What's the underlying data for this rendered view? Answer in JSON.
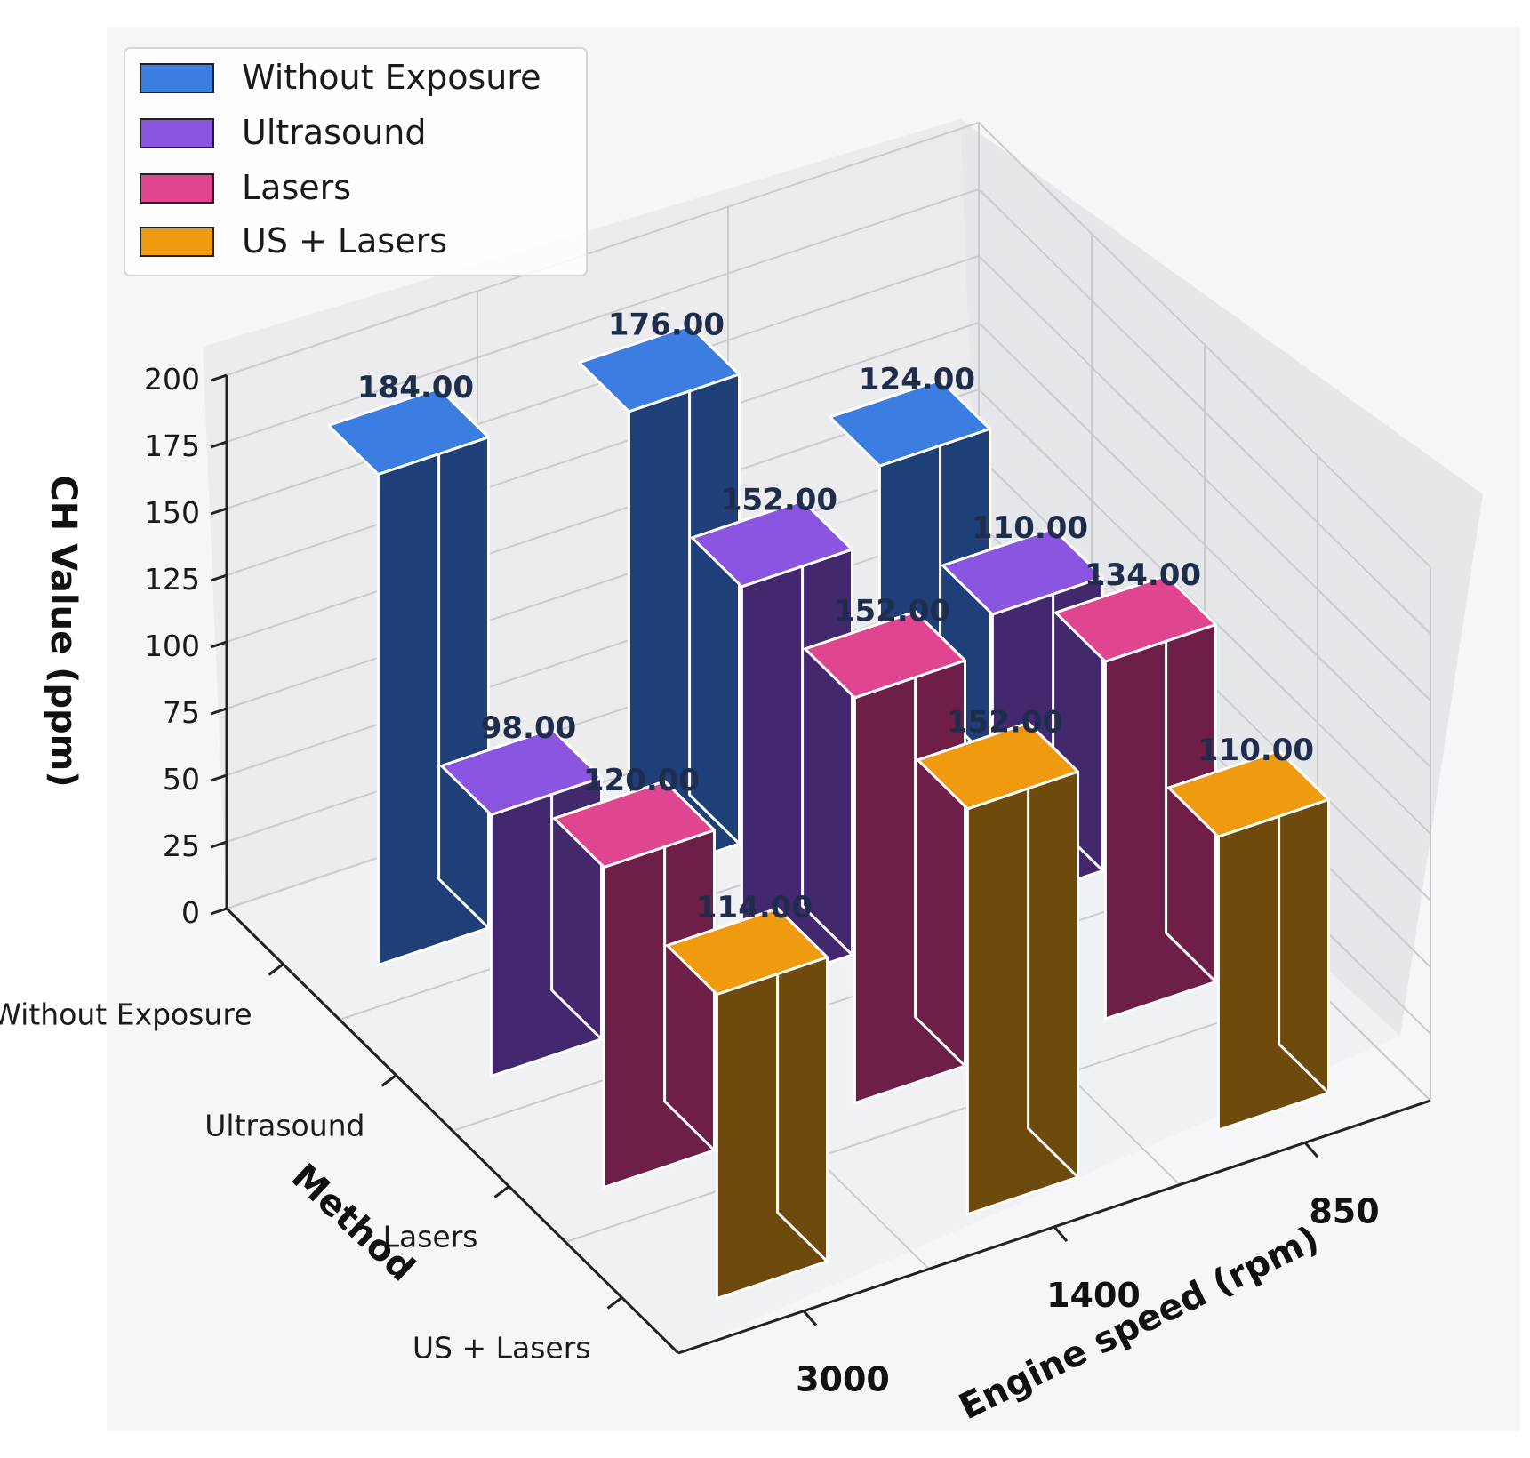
{
  "chart_data": {
    "type": "bar",
    "subtype": "3d-bar",
    "title": "",
    "zlabel": "CH Value (ppm)",
    "ylabel": "Method",
    "xlabel": "Engine speed (rpm)",
    "zlim": [
      0,
      200
    ],
    "zticks": [
      "0",
      "25",
      "50",
      "75",
      "100",
      "125",
      "150",
      "175",
      "200"
    ],
    "methods": [
      "Without Exposure",
      "Ultrasound",
      "Lasers",
      "US + Lasers"
    ],
    "speeds": [
      "3000",
      "1400",
      "850"
    ],
    "series": [
      {
        "name": "Without Exposure",
        "color": "#3b7de0",
        "side_color": "#1f3f78",
        "values": [
          184,
          176,
          124
        ],
        "labels": [
          "184.00",
          "176.00",
          "124.00"
        ]
      },
      {
        "name": "Ultrasound",
        "color": "#8a55e0",
        "side_color": "#44286f",
        "values": [
          98,
          152,
          110
        ],
        "labels": [
          "98.00",
          "152.00",
          "110.00"
        ]
      },
      {
        "name": "Lasers",
        "color": "#e0468f",
        "side_color": "#6e1f48",
        "values": [
          120,
          152,
          134
        ],
        "labels": [
          "120.00",
          "152.00",
          "134.00"
        ]
      },
      {
        "name": "US + Lasers",
        "color": "#f09a10",
        "side_color": "#6e4a0d",
        "values": [
          114,
          152,
          110
        ],
        "labels": [
          "114.00",
          "152.00",
          "110.00"
        ]
      }
    ],
    "legend_position": "top-left",
    "grid": true
  }
}
